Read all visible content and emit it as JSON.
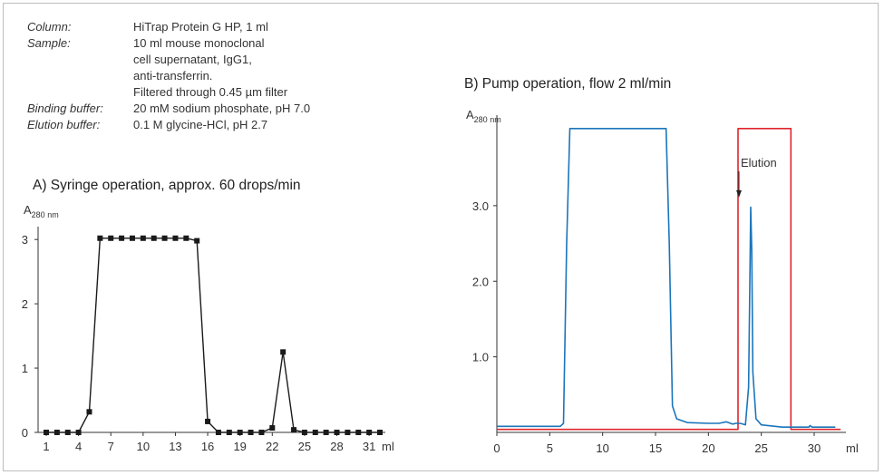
{
  "info": [
    {
      "key": "Column:",
      "value": "HiTrap Protein G HP, 1 ml"
    },
    {
      "key": "Sample:",
      "value": "10 ml mouse monoclonal"
    },
    {
      "key": "",
      "value": "cell supernatant, IgG1,"
    },
    {
      "key": "",
      "value": "anti-transferrin."
    },
    {
      "key": "",
      "value": "Filtered through 0.45 µm filter"
    },
    {
      "key": "Binding buffer:",
      "value": "20 mM sodium phosphate, pH 7.0"
    },
    {
      "key": "Elution buffer:",
      "value": "0.1 M glycine-HCl, pH 2.7"
    }
  ],
  "chart_data": [
    {
      "type": "line",
      "title": "A) Syringe operation, approx. 60 drops/min",
      "ylabel": "A",
      "ylabel_sub": "280 nm",
      "xlabel": "ml",
      "xlim": [
        1,
        32
      ],
      "ylim": [
        0,
        3.2
      ],
      "x_ticks": [
        1,
        4,
        7,
        10,
        13,
        16,
        19,
        22,
        25,
        28,
        31
      ],
      "y_ticks": [
        0,
        1,
        2,
        3
      ],
      "color": "#1a1a1a",
      "markers": "square",
      "series": [
        {
          "x": [
            1,
            2,
            3,
            4,
            5,
            6,
            7,
            8,
            9,
            10,
            11,
            12,
            13,
            14,
            15,
            16,
            17,
            18,
            19,
            20,
            21,
            22,
            23,
            24,
            25,
            26,
            27,
            28,
            29,
            30,
            31,
            32
          ],
          "y": [
            0,
            0,
            0,
            0,
            0.32,
            3.02,
            3.02,
            3.02,
            3.02,
            3.02,
            3.02,
            3.02,
            3.02,
            3.02,
            2.98,
            0.17,
            0,
            0,
            0,
            0,
            0,
            0.07,
            1.25,
            0.04,
            0,
            0,
            0,
            0,
            0,
            0,
            0,
            0
          ]
        }
      ]
    },
    {
      "type": "line",
      "title": "B) Pump operation, flow 2 ml/min",
      "ylabel": "A",
      "ylabel_sub": "280 nm",
      "xlabel": "ml",
      "xlim": [
        0,
        33
      ],
      "ylim": [
        0,
        4.15
      ],
      "x_ticks": [
        0,
        5,
        10,
        15,
        20,
        25,
        30
      ],
      "y_ticks": [
        1.0,
        2.0,
        3.0
      ],
      "y_tick_labels": [
        "1.0",
        "2.0",
        "3.0"
      ],
      "annotation": {
        "text": "Elution",
        "x": 22.8,
        "y": 3.3
      },
      "series": [
        {
          "color": "#1b75bb",
          "x": [
            0,
            6.0,
            6.3,
            6.6,
            6.9,
            16.0,
            16.3,
            16.6,
            17,
            18,
            20,
            21,
            21.7,
            22.3,
            22.6,
            23.0,
            23.5,
            23.8,
            24.0,
            24.1,
            24.2,
            24.5,
            25.0,
            27,
            29.5,
            29.6,
            29.8,
            32
          ],
          "y": [
            0.08,
            0.08,
            0.12,
            2.5,
            4.02,
            4.02,
            2.5,
            0.35,
            0.18,
            0.13,
            0.12,
            0.12,
            0.14,
            0.11,
            0.12,
            0.12,
            0.1,
            0.6,
            2.98,
            2.4,
            0.8,
            0.18,
            0.1,
            0.07,
            0.07,
            0.09,
            0.07,
            0.07
          ]
        },
        {
          "color": "#e0252c",
          "x": [
            0,
            22.8,
            22.8,
            27.8,
            27.8,
            32.5
          ],
          "y": [
            0.04,
            0.04,
            4.02,
            4.02,
            0.04,
            0.04
          ]
        }
      ]
    }
  ]
}
